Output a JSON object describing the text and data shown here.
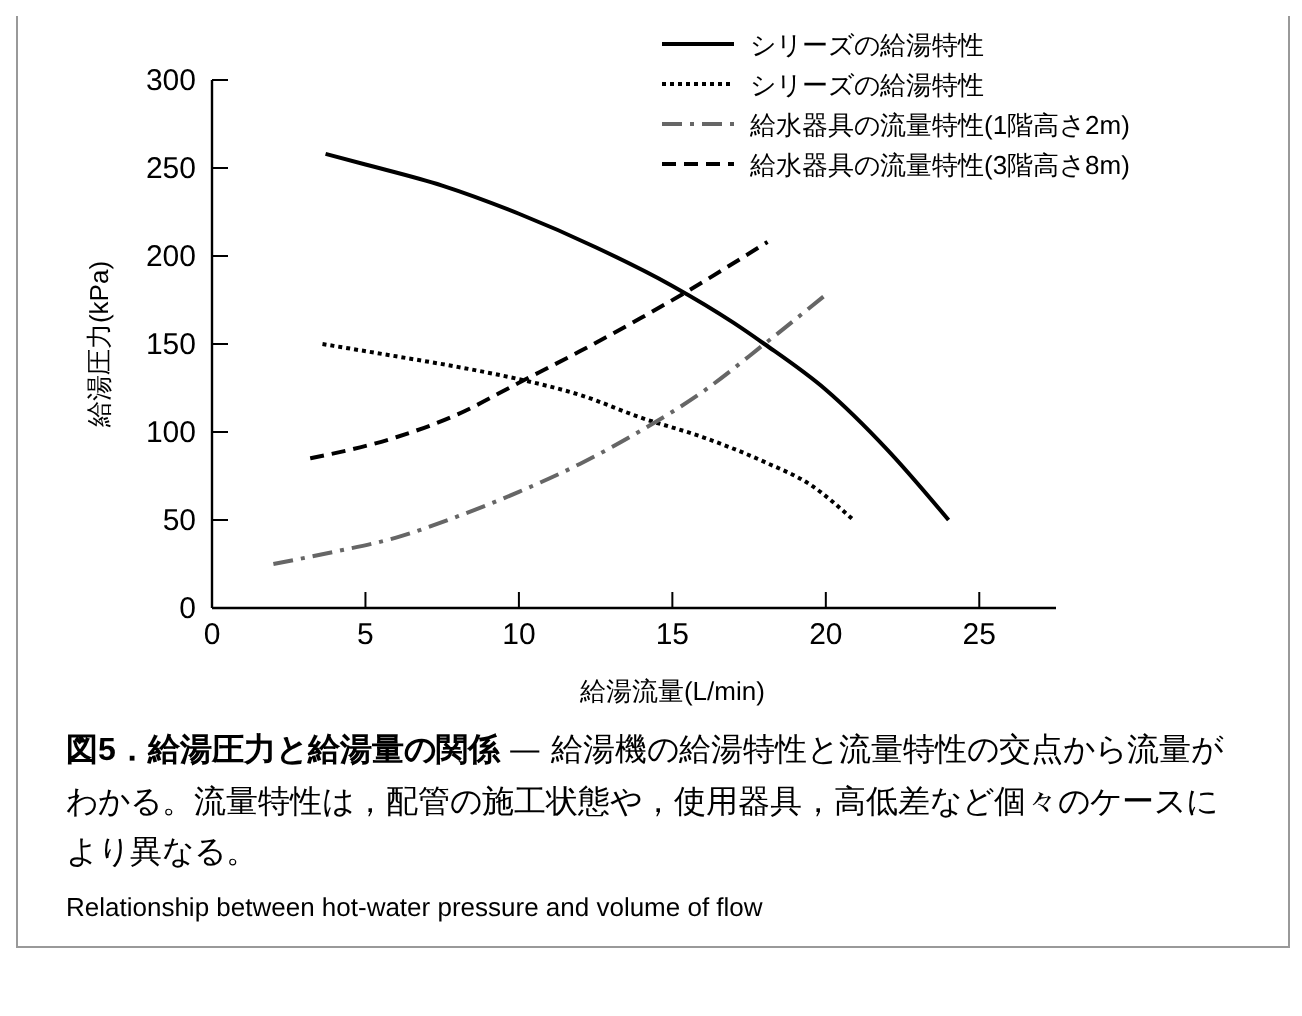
{
  "chart_data": {
    "type": "line",
    "xlabel": "給湯流量(L/min)",
    "ylabel": "給湯圧力(kPa)",
    "title": "図5．給湯圧力と給湯量の関係",
    "xlim": [
      0,
      27.5
    ],
    "ylim": [
      0,
      300
    ],
    "xticks": [
      0,
      5,
      10,
      15,
      20,
      25
    ],
    "yticks": [
      0,
      50,
      100,
      150,
      200,
      250,
      300
    ],
    "grid": false,
    "legend": "top right",
    "marker": "none",
    "series": [
      {
        "name": "シリーズの給湯特性",
        "color": "#000000",
        "line_style": "solid",
        "x": [
          3.7,
          5,
          7.5,
          10,
          12.5,
          15,
          17,
          18,
          20,
          22,
          24
        ],
        "values": [
          258,
          252,
          240,
          224,
          205,
          183,
          162,
          150,
          124,
          90,
          50
        ]
      },
      {
        "name": "シリーズの給湯特性",
        "color": "#000000",
        "line_style": "dotted",
        "x": [
          3.6,
          6,
          8,
          10,
          12,
          14,
          16,
          18,
          19.5,
          20.9
        ],
        "values": [
          150,
          143,
          137,
          130,
          121,
          108,
          97,
          83,
          70,
          50
        ]
      },
      {
        "name": "給水器具の流量特性(1階高さ2m)",
        "color": "#666666",
        "line_style": "dashdot",
        "x": [
          2,
          4,
          6,
          8,
          10,
          12,
          14,
          16,
          18,
          20
        ],
        "values": [
          25,
          32,
          40,
          52,
          66,
          82,
          101,
          123,
          150,
          178
        ]
      },
      {
        "name": "給水器具の流量特性(3階高さ8m)",
        "color": "#000000",
        "line_style": "dashed",
        "x": [
          3.2,
          6,
          8,
          10,
          12,
          14,
          15.3,
          17,
          18.1
        ],
        "values": [
          85,
          97,
          110,
          128,
          146,
          165,
          178,
          196,
          208
        ]
      }
    ],
    "annotations": [
      "— 給湯機の給湯特性と流量特性の交点から流量がわかる。流量特性は，配管の施工状態や，使用器具，高低差など個々のケースにより異なる。",
      "Relationship between hot-water pressure and volume of flow"
    ]
  }
}
